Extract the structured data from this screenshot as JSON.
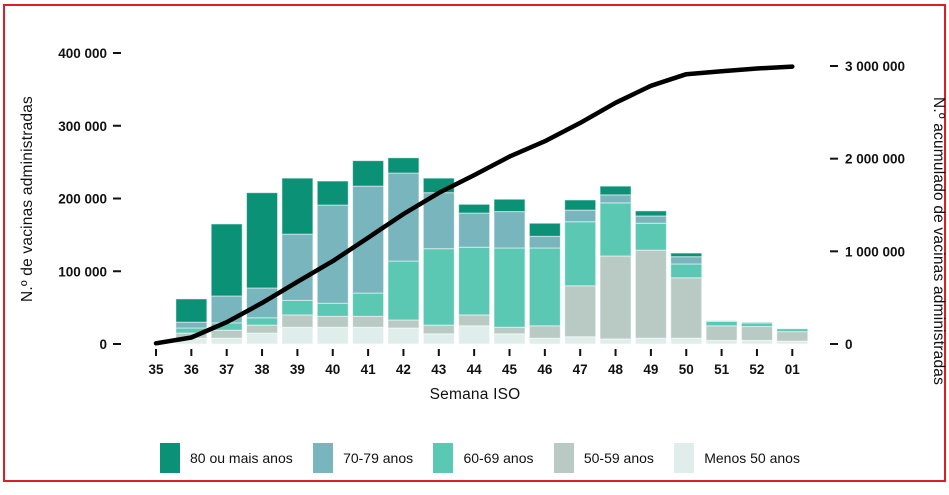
{
  "figure": {
    "background": "#ffffff",
    "border_color": "#dd1f1f",
    "line_color": "#000000"
  },
  "chart_data": {
    "type": "bar",
    "subtype": "stacked-bars-with-cumulative-line",
    "title": "",
    "xlabel": "Semana ISO",
    "ylabel_left": "N.º de vacinas administradas",
    "ylabel_right": "N.º acumulado de vacinas administradas",
    "categories": [
      "35",
      "36",
      "37",
      "38",
      "39",
      "40",
      "41",
      "42",
      "43",
      "44",
      "45",
      "46",
      "47",
      "48",
      "49",
      "50",
      "51",
      "52",
      "01"
    ],
    "left_axis": {
      "lim": [
        0,
        400000
      ],
      "ticks": [
        {
          "value": 0,
          "label": "0"
        },
        {
          "value": 100000,
          "label": "100 000"
        },
        {
          "value": 200000,
          "label": "200 000"
        },
        {
          "value": 300000,
          "label": "300 000"
        },
        {
          "value": 400000,
          "label": "400 000"
        }
      ]
    },
    "right_axis": {
      "lim": [
        0,
        3000000
      ],
      "ticks": [
        {
          "value": 0,
          "label": "0"
        },
        {
          "value": 1000000,
          "label": "1 000 000"
        },
        {
          "value": 2000000,
          "label": "2 000 000"
        },
        {
          "value": 3000000,
          "label": "3 000 000"
        }
      ]
    },
    "series": [
      {
        "name": "80 ou mais anos",
        "color": "#0b9175",
        "values": [
          0,
          32000,
          99000,
          131000,
          77000,
          33000,
          35000,
          21000,
          20000,
          12000,
          17000,
          18000,
          14000,
          12000,
          7000,
          5000,
          0,
          0,
          0
        ]
      },
      {
        "name": "70-79 anos",
        "color": "#79b5bc",
        "values": [
          0,
          8000,
          37000,
          41000,
          91000,
          135000,
          147000,
          121000,
          77000,
          47000,
          50000,
          16000,
          16000,
          11000,
          10000,
          10000,
          1000,
          1000,
          0
        ]
      },
      {
        "name": "60-69 anos",
        "color": "#5bc8b4",
        "values": [
          0,
          7000,
          10000,
          10000,
          20000,
          18000,
          32000,
          81000,
          105000,
          93000,
          109000,
          107000,
          88000,
          73000,
          37000,
          19000,
          6000,
          5000,
          4000
        ]
      },
      {
        "name": "50-59 anos",
        "color": "#b9cac4",
        "values": [
          0,
          7000,
          11000,
          11000,
          17000,
          15000,
          15000,
          11000,
          12000,
          15000,
          9000,
          17000,
          70000,
          114000,
          121000,
          83000,
          20000,
          19000,
          13000
        ]
      },
      {
        "name": "Menos 50 anos",
        "color": "#dfeeea",
        "values": [
          0,
          8000,
          8000,
          15000,
          23000,
          23000,
          23000,
          22000,
          14000,
          25000,
          14000,
          8000,
          10000,
          7000,
          8000,
          8000,
          5000,
          5000,
          4000
        ]
      }
    ],
    "line": {
      "name": "N.º acumulado de vacinas administradas",
      "color": "#000000",
      "values": [
        8000,
        70000,
        235000,
        443000,
        671000,
        895000,
        1147000,
        1403000,
        1631000,
        1823000,
        2022000,
        2188000,
        2386000,
        2603000,
        2786000,
        2911000,
        2943000,
        2973000,
        2994000
      ]
    },
    "legend_position": "bottom",
    "grid": false,
    "stack_note": "series listed top-of-stack first; bars stacked with Menos 50 anos at bottom"
  }
}
